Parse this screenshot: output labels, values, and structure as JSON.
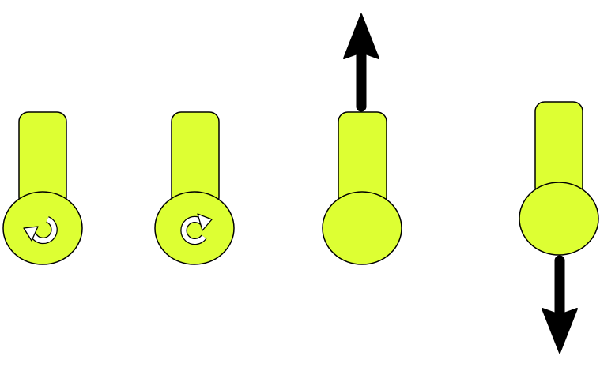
{
  "colors": {
    "background": "#ffffff",
    "handle_fill": "#ddff33",
    "outline": "#000000",
    "glyph_fill": "#ffffff",
    "arrow": "#000000"
  },
  "handles": [
    {
      "name": "rotate-counterclockwise-handle",
      "icon": "rotate-ccw-icon"
    },
    {
      "name": "rotate-clockwise-handle",
      "icon": "rotate-cw-icon"
    },
    {
      "name": "move-up-handle",
      "icon": "arrow-up-icon"
    },
    {
      "name": "move-down-handle",
      "icon": "arrow-down-icon"
    }
  ]
}
